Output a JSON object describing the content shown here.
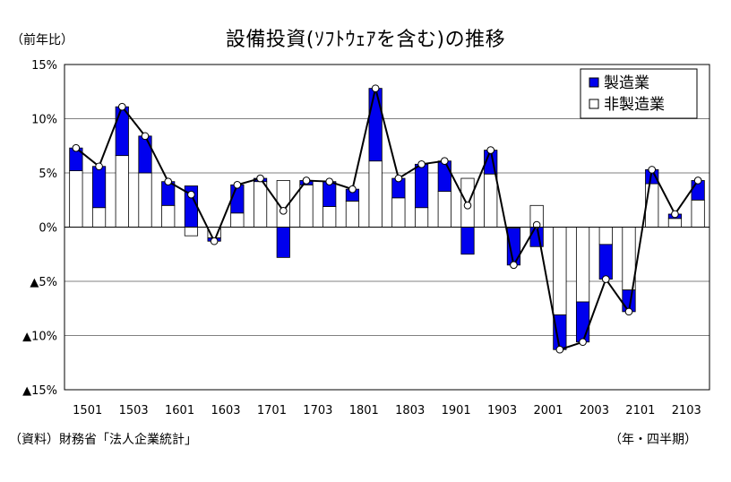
{
  "chart_data": {
    "type": "bar",
    "title": "設備投資(ｿﾌﾄｳｪｱを含む)の推移",
    "unit_label": "（前年比）",
    "source_note": "（資料）財務省「法人企業統計」",
    "period_note": "（年・四半期）",
    "xlabel": "",
    "ylabel": "",
    "ylim": [
      -15,
      15
    ],
    "y_ticks": [
      15,
      10,
      5,
      0,
      -5,
      -10,
      -15
    ],
    "y_tick_labels": [
      "15%",
      "10%",
      "5%",
      "0%",
      "▲5%",
      "▲10%",
      "▲15%"
    ],
    "grid": true,
    "legend_position": "top-right",
    "stacked": true,
    "x_tick_labels": [
      "1501",
      "1503",
      "1601",
      "1603",
      "1701",
      "1703",
      "1801",
      "1803",
      "1901",
      "1903",
      "2001",
      "2003",
      "2101",
      "2103"
    ],
    "categories": [
      "1501",
      "1502",
      "1503",
      "1504",
      "1601",
      "1602",
      "1603",
      "1604",
      "1701",
      "1702",
      "1703",
      "1704",
      "1801",
      "1802",
      "1803",
      "1804",
      "1901",
      "1902",
      "1903",
      "1904",
      "2001",
      "2002",
      "2003",
      "2004",
      "2101",
      "2102",
      "2103",
      "2104"
    ],
    "series": [
      {
        "name": "製造業",
        "kind": "bar",
        "color": "#0000ee",
        "values": [
          2.1,
          3.8,
          4.5,
          3.4,
          2.2,
          3.8,
          -0.3,
          2.6,
          0.3,
          -2.8,
          0.4,
          2.3,
          1.1,
          6.7,
          1.8,
          4.0,
          2.8,
          -2.5,
          2.2,
          -3.4,
          -1.8,
          -3.2,
          -3.7,
          -3.2,
          -2.0,
          1.3,
          0.4,
          1.8
        ]
      },
      {
        "name": "非製造業",
        "kind": "bar",
        "color": "#ffffff",
        "values": [
          5.2,
          1.8,
          6.6,
          5.0,
          2.0,
          -0.8,
          -1.0,
          1.3,
          4.2,
          4.3,
          3.9,
          1.9,
          2.4,
          6.1,
          2.7,
          1.8,
          3.3,
          4.5,
          4.9,
          -0.1,
          2.0,
          -8.1,
          -6.9,
          -1.6,
          -5.8,
          4.0,
          0.8,
          2.5
        ]
      },
      {
        "name": "",
        "kind": "line",
        "color": "#000000",
        "values": [
          7.3,
          5.6,
          11.1,
          8.4,
          4.2,
          3.0,
          -1.3,
          3.9,
          4.5,
          1.5,
          4.3,
          4.2,
          3.5,
          12.8,
          4.5,
          5.8,
          6.1,
          2.0,
          7.1,
          -3.5,
          0.2,
          -11.3,
          -10.6,
          -4.8,
          -7.8,
          5.3,
          1.2,
          4.3
        ]
      }
    ]
  }
}
